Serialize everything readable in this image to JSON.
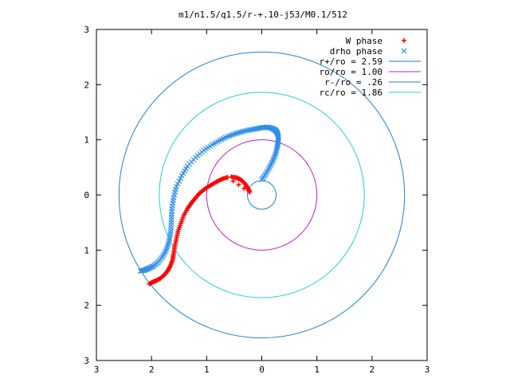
{
  "chart_data": {
    "type": "scatter",
    "title": "m1/n1.5/q1.5/r-+.10-j53/M0.1/512",
    "xlim": [
      -3,
      3
    ],
    "ylim": [
      -3,
      3
    ],
    "xtick_values": [
      -3,
      -2,
      -1,
      0,
      1,
      2,
      3
    ],
    "ytick_values": [
      -3,
      -2,
      -1,
      0,
      1,
      2,
      3
    ],
    "xtick_labels": [
      "3",
      "2",
      "1",
      "0",
      "1",
      "2",
      "3"
    ],
    "ytick_labels": [
      "3",
      "2",
      "1",
      "0",
      "1",
      "2",
      "3"
    ],
    "grid": false,
    "legend_position": "top-right",
    "legend": [
      {
        "label": "W phase",
        "kind": "marker",
        "marker": "plus",
        "color": "#ff0000"
      },
      {
        "label": "drho phase",
        "kind": "marker",
        "marker": "cross",
        "color": "#2f8fe8"
      },
      {
        "label": "r+/ro = 2.59",
        "kind": "line",
        "color": "#1f80d0"
      },
      {
        "label": "ro/ro = 1.00",
        "kind": "line",
        "color": "#c020c0"
      },
      {
        "label": "r-/ro = .26",
        "kind": "line",
        "color": "#1f80d0"
      },
      {
        "label": "rc/ro = 1.86",
        "kind": "line",
        "color": "#20d0d0"
      }
    ],
    "circles": [
      {
        "radius": 2.59,
        "color": "#1f80d0"
      },
      {
        "radius": 1.0,
        "color": "#c020c0"
      },
      {
        "radius": 0.26,
        "color": "#1f80d0"
      },
      {
        "radius": 1.86,
        "color": "#20d0d0"
      }
    ],
    "series": [
      {
        "name": "W phase",
        "marker": "plus",
        "color": "#ff0000",
        "x": [
          -0.55,
          -0.45,
          -0.37,
          -0.3,
          -0.25,
          -0.22,
          -0.62,
          -0.72,
          -0.82,
          -0.92,
          -1.02,
          -1.12,
          -1.2,
          -1.28,
          -1.35,
          -1.42,
          -1.47,
          -1.52,
          -1.55,
          -1.58,
          -1.6,
          -1.62,
          -1.66,
          -1.71,
          -1.77,
          -1.84,
          -1.91,
          -1.98,
          -2.04
        ],
        "y": [
          0.33,
          0.31,
          0.27,
          0.2,
          0.12,
          0.05,
          0.32,
          0.29,
          0.24,
          0.18,
          0.12,
          0.04,
          -0.05,
          -0.15,
          -0.25,
          -0.38,
          -0.52,
          -0.66,
          -0.8,
          -0.94,
          -1.07,
          -1.18,
          -1.29,
          -1.38,
          -1.45,
          -1.51,
          -1.55,
          -1.58,
          -1.61
        ]
      },
      {
        "name": "drho phase",
        "x": [
          0.0,
          0.07,
          0.14,
          0.2,
          0.25,
          0.28,
          0.3,
          0.3,
          0.28,
          0.24,
          0.18,
          0.1,
          0.0,
          -0.1,
          -0.22,
          -0.35,
          -0.48,
          -0.62,
          -0.76,
          -0.9,
          -1.05,
          -1.2,
          -1.35,
          -1.45,
          -1.55,
          -1.6,
          -1.63,
          -1.64,
          -1.65,
          -1.68,
          -1.73,
          -1.8,
          -1.88,
          -1.97,
          -2.05,
          -2.12,
          -2.2
        ],
        "y": [
          0.28,
          0.38,
          0.5,
          0.62,
          0.74,
          0.87,
          0.97,
          1.06,
          1.13,
          1.18,
          1.21,
          1.23,
          1.22,
          1.2,
          1.18,
          1.15,
          1.11,
          1.06,
          0.99,
          0.91,
          0.81,
          0.68,
          0.52,
          0.35,
          0.15,
          -0.05,
          -0.25,
          -0.45,
          -0.65,
          -0.83,
          -0.99,
          -1.12,
          -1.22,
          -1.29,
          -1.33,
          -1.36,
          -1.38
        ],
        "marker": "cross",
        "color": "#2f8fe8"
      }
    ]
  }
}
